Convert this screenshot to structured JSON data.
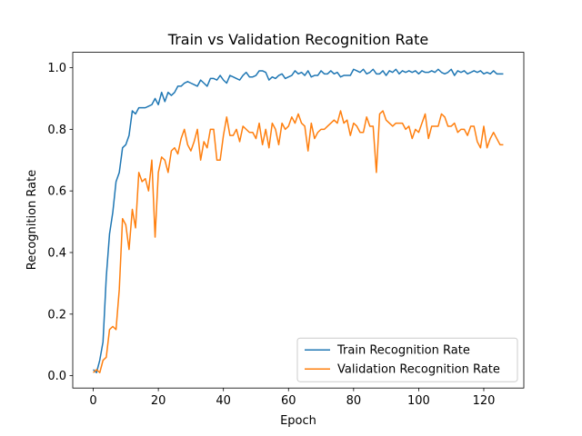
{
  "chart_data": {
    "type": "line",
    "title": "Train vs Validation Recognition Rate",
    "x_label": "Epoch",
    "y_label": "Recognition Rate",
    "x": [
      0,
      1,
      2,
      3,
      4,
      5,
      6,
      7,
      8,
      9,
      10,
      11,
      12,
      13,
      14,
      15,
      16,
      17,
      18,
      19,
      20,
      21,
      22,
      23,
      24,
      25,
      26,
      27,
      28,
      29,
      30,
      31,
      32,
      33,
      34,
      35,
      36,
      37,
      38,
      39,
      40,
      41,
      42,
      43,
      44,
      45,
      46,
      47,
      48,
      49,
      50,
      51,
      52,
      53,
      54,
      55,
      56,
      57,
      58,
      59,
      60,
      61,
      62,
      63,
      64,
      65,
      66,
      67,
      68,
      69,
      70,
      71,
      72,
      73,
      74,
      75,
      76,
      77,
      78,
      79,
      80,
      81,
      82,
      83,
      84,
      85,
      86,
      87,
      88,
      89,
      90,
      91,
      92,
      93,
      94,
      95,
      96,
      97,
      98,
      99,
      100,
      101,
      102,
      103,
      104,
      105,
      106,
      107,
      108,
      109,
      110,
      111,
      112,
      113,
      114,
      115,
      116,
      117,
      118,
      119,
      120,
      121,
      122,
      123,
      124,
      125,
      126
    ],
    "series": [
      {
        "name": "Train Recognition Rate",
        "color": "#1f77b4",
        "values": [
          0.02,
          0.01,
          0.05,
          0.11,
          0.32,
          0.46,
          0.53,
          0.63,
          0.66,
          0.74,
          0.75,
          0.78,
          0.86,
          0.85,
          0.87,
          0.87,
          0.87,
          0.875,
          0.88,
          0.9,
          0.88,
          0.92,
          0.89,
          0.92,
          0.91,
          0.92,
          0.94,
          0.94,
          0.95,
          0.955,
          0.95,
          0.945,
          0.94,
          0.96,
          0.95,
          0.94,
          0.965,
          0.965,
          0.96,
          0.975,
          0.96,
          0.95,
          0.975,
          0.97,
          0.965,
          0.96,
          0.975,
          0.985,
          0.97,
          0.97,
          0.975,
          0.99,
          0.99,
          0.985,
          0.96,
          0.97,
          0.965,
          0.975,
          0.98,
          0.965,
          0.97,
          0.975,
          0.99,
          0.98,
          0.985,
          0.975,
          0.99,
          0.97,
          0.975,
          0.975,
          0.99,
          0.98,
          0.98,
          0.99,
          0.98,
          0.985,
          0.97,
          0.975,
          0.975,
          0.975,
          0.995,
          0.99,
          0.985,
          0.995,
          0.98,
          0.985,
          0.995,
          0.98,
          0.98,
          0.99,
          0.975,
          0.99,
          0.985,
          0.995,
          0.98,
          0.99,
          0.985,
          0.99,
          0.985,
          0.99,
          0.98,
          0.99,
          0.985,
          0.985,
          0.99,
          0.985,
          0.995,
          0.985,
          0.98,
          0.985,
          0.995,
          0.975,
          0.99,
          0.985,
          0.99,
          0.98,
          0.985,
          0.99,
          0.985,
          0.99,
          0.98,
          0.985,
          0.98,
          0.99,
          0.98,
          0.98,
          0.98
        ]
      },
      {
        "name": "Validation Recognition Rate",
        "color": "#ff7f0e",
        "values": [
          0.01,
          0.02,
          0.01,
          0.05,
          0.06,
          0.15,
          0.16,
          0.15,
          0.28,
          0.51,
          0.49,
          0.41,
          0.54,
          0.48,
          0.66,
          0.63,
          0.64,
          0.6,
          0.7,
          0.45,
          0.66,
          0.71,
          0.7,
          0.66,
          0.73,
          0.74,
          0.72,
          0.77,
          0.8,
          0.75,
          0.73,
          0.76,
          0.8,
          0.7,
          0.76,
          0.74,
          0.8,
          0.8,
          0.7,
          0.7,
          0.78,
          0.84,
          0.78,
          0.78,
          0.8,
          0.76,
          0.81,
          0.8,
          0.79,
          0.79,
          0.77,
          0.82,
          0.75,
          0.8,
          0.74,
          0.82,
          0.8,
          0.75,
          0.82,
          0.8,
          0.81,
          0.84,
          0.82,
          0.85,
          0.82,
          0.81,
          0.73,
          0.82,
          0.77,
          0.79,
          0.8,
          0.8,
          0.81,
          0.82,
          0.83,
          0.82,
          0.86,
          0.82,
          0.83,
          0.78,
          0.82,
          0.81,
          0.79,
          0.79,
          0.84,
          0.81,
          0.81,
          0.66,
          0.85,
          0.86,
          0.83,
          0.82,
          0.81,
          0.82,
          0.82,
          0.82,
          0.8,
          0.81,
          0.77,
          0.8,
          0.79,
          0.82,
          0.85,
          0.77,
          0.81,
          0.81,
          0.81,
          0.85,
          0.84,
          0.81,
          0.81,
          0.82,
          0.79,
          0.8,
          0.8,
          0.78,
          0.81,
          0.81,
          0.76,
          0.74,
          0.81,
          0.74,
          0.77,
          0.79,
          0.77,
          0.75,
          0.75
        ]
      }
    ],
    "xlim": [
      -6.3,
      132.3
    ],
    "ylim": [
      -0.04,
      1.05
    ],
    "xticks": [
      0,
      20,
      40,
      60,
      80,
      100,
      120
    ],
    "yticks": [
      {
        "value": 0,
        "label": "0.0"
      },
      0.2,
      0.4,
      0.6,
      0.8,
      {
        "value": 1,
        "label": "1.0"
      }
    ],
    "legend": "lower right"
  }
}
